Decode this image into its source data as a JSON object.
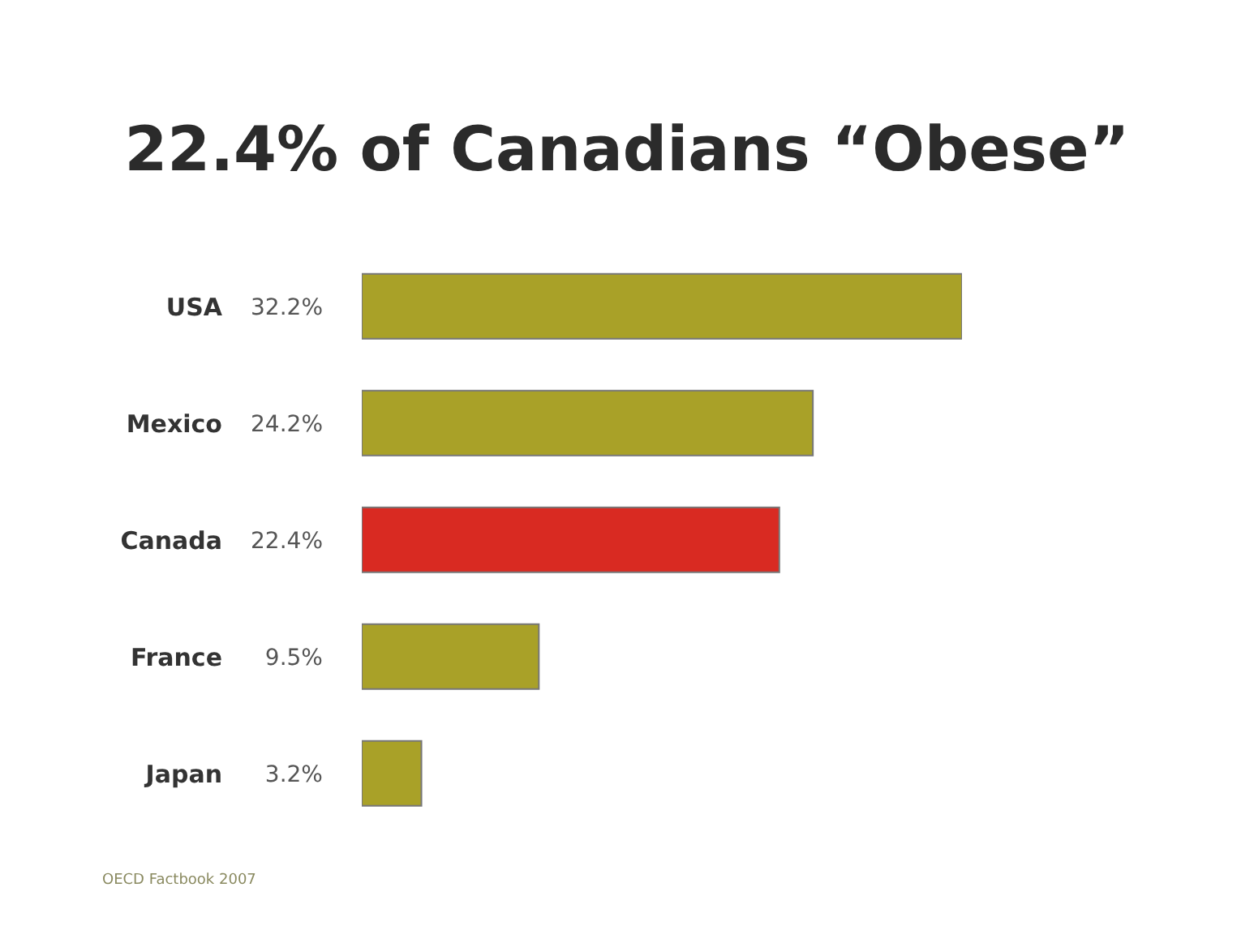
{
  "chart_data": {
    "type": "bar",
    "orientation": "horizontal",
    "title": "22.4% of Canadians “Obese”",
    "categories": [
      "USA",
      "Mexico",
      "Canada",
      "France",
      "Japan"
    ],
    "values": [
      32.2,
      24.2,
      22.4,
      9.5,
      3.2
    ],
    "value_labels": [
      "32.2%",
      "24.2%",
      "22.4%",
      "9.5%",
      "3.2%"
    ],
    "colors": [
      "#a9a128",
      "#a9a128",
      "#d92a22",
      "#a9a128",
      "#a9a128"
    ],
    "annotations": [
      "OECD Factbook 2007"
    ],
    "grid": false,
    "legend": false
  }
}
